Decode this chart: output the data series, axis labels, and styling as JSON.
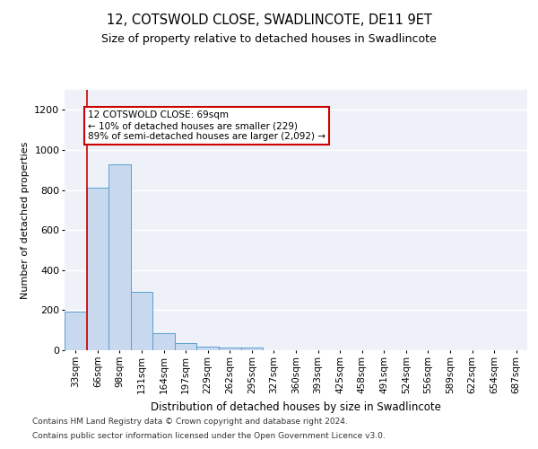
{
  "title": "12, COTSWOLD CLOSE, SWADLINCOTE, DE11 9ET",
  "subtitle": "Size of property relative to detached houses in Swadlincote",
  "xlabel": "Distribution of detached houses by size in Swadlincote",
  "ylabel": "Number of detached properties",
  "bar_color": "#c8d8ee",
  "bar_edge_color": "#5a9fd4",
  "background_color": "#eef2f8",
  "grid_color": "#ffffff",
  "fig_background": "#ffffff",
  "categories": [
    "33sqm",
    "66sqm",
    "98sqm",
    "131sqm",
    "164sqm",
    "197sqm",
    "229sqm",
    "262sqm",
    "295sqm",
    "327sqm",
    "360sqm",
    "393sqm",
    "425sqm",
    "458sqm",
    "491sqm",
    "524sqm",
    "556sqm",
    "589sqm",
    "622sqm",
    "654sqm",
    "687sqm"
  ],
  "bar_values": [
    195,
    810,
    930,
    290,
    85,
    35,
    20,
    15,
    12,
    0,
    0,
    0,
    0,
    0,
    0,
    0,
    0,
    0,
    0,
    0,
    0
  ],
  "ylim": [
    0,
    1300
  ],
  "yticks": [
    0,
    200,
    400,
    600,
    800,
    1000,
    1200
  ],
  "annotation_text": "12 COTSWOLD CLOSE: 69sqm\n← 10% of detached houses are smaller (229)\n89% of semi-detached houses are larger (2,092) →",
  "annotation_box_color": "#ffffff",
  "annotation_box_edge_color": "#cc0000",
  "line_color": "#cc0000",
  "footer_line1": "Contains HM Land Registry data © Crown copyright and database right 2024.",
  "footer_line2": "Contains public sector information licensed under the Open Government Licence v3.0."
}
